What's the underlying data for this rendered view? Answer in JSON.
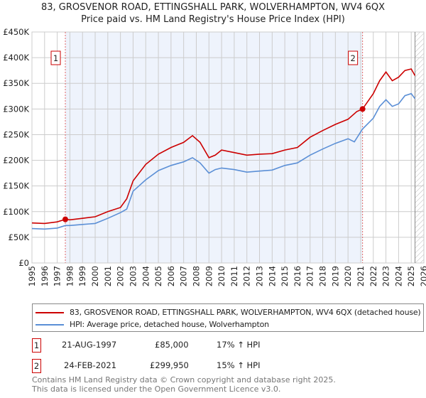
{
  "title_line1": "83, GROSVENOR ROAD, ETTINGSHALL PARK, WOLVERHAMPTON, WV4 6QX",
  "title_line2": "Price paid vs. HM Land Registry's House Price Index (HPI)",
  "chart_data": {
    "type": "line",
    "xlim": [
      1995,
      2026
    ],
    "ylim": [
      0,
      450000
    ],
    "yticks": [
      0,
      50000,
      100000,
      150000,
      200000,
      250000,
      300000,
      350000,
      400000,
      450000
    ],
    "ytick_labels": [
      "£0",
      "£50K",
      "£100K",
      "£150K",
      "£200K",
      "£250K",
      "£300K",
      "£350K",
      "£400K",
      "£450K"
    ],
    "xticks": [
      "1995",
      "1996",
      "1997",
      "1998",
      "1999",
      "2000",
      "2001",
      "2002",
      "2003",
      "2004",
      "2005",
      "2006",
      "2007",
      "2008",
      "2009",
      "2010",
      "2011",
      "2012",
      "2013",
      "2014",
      "2015",
      "2016",
      "2017",
      "2018",
      "2019",
      "2020",
      "2021",
      "2022",
      "2023",
      "2024",
      "2025",
      "2026"
    ],
    "grid": true,
    "shaded_range": [
      1997.64,
      2021.15
    ],
    "hatched_from": 2025.3,
    "series": [
      {
        "name": "83, GROSVENOR ROAD, ETTINGSHALL PARK, WOLVERHAMPTON, WV4 6QX (detached house)",
        "color": "#cc0000",
        "x": [
          1995,
          1996,
          1997,
          1997.64,
          1998,
          1999,
          2000,
          2001,
          2002,
          2002.5,
          2003,
          2004,
          2005,
          2006,
          2007,
          2007.7,
          2008.3,
          2009,
          2009.5,
          2010,
          2011,
          2012,
          2013,
          2014,
          2015,
          2016,
          2017,
          2018,
          2019,
          2020,
          2020.7,
          2021.15,
          2022,
          2022.5,
          2023,
          2023.5,
          2024,
          2024.5,
          2025,
          2025.3
        ],
        "y": [
          78000,
          77000,
          80000,
          85000,
          84000,
          87000,
          90000,
          100000,
          108000,
          125000,
          160000,
          192000,
          212000,
          225000,
          235000,
          248000,
          235000,
          205000,
          210000,
          220000,
          215000,
          210000,
          212000,
          213000,
          220000,
          225000,
          245000,
          258000,
          270000,
          280000,
          295000,
          299950,
          330000,
          355000,
          372000,
          355000,
          362000,
          375000,
          378000,
          365000
        ]
      },
      {
        "name": "HPI: Average price, detached house, Wolverhampton",
        "color": "#5b8fd6",
        "x": [
          1995,
          1996,
          1997,
          1997.64,
          1998,
          1999,
          2000,
          2001,
          2002,
          2002.5,
          2003,
          2004,
          2005,
          2006,
          2007,
          2007.7,
          2008.3,
          2009,
          2009.5,
          2010,
          2011,
          2012,
          2013,
          2014,
          2015,
          2016,
          2017,
          2018,
          2019,
          2020,
          2020.5,
          2021.15,
          2022,
          2022.5,
          2023,
          2023.5,
          2024,
          2024.5,
          2025,
          2025.3
        ],
        "y": [
          67000,
          66000,
          68000,
          73000,
          73000,
          75000,
          77000,
          87000,
          98000,
          105000,
          140000,
          162000,
          180000,
          190000,
          197000,
          205000,
          195000,
          175000,
          182000,
          185000,
          182000,
          177000,
          179000,
          181000,
          190000,
          195000,
          210000,
          222000,
          233000,
          242000,
          236000,
          261000,
          282000,
          305000,
          318000,
          305000,
          310000,
          326000,
          330000,
          320000
        ]
      }
    ],
    "annotations": [
      {
        "label": "1",
        "x": 1997.64,
        "y": 85000
      },
      {
        "label": "2",
        "x": 2021.15,
        "y": 299950
      }
    ]
  },
  "legend": {
    "items": [
      "83, GROSVENOR ROAD, ETTINGSHALL PARK, WOLVERHAMPTON, WV4 6QX (detached house)",
      "HPI: Average price, detached house, Wolverhampton"
    ]
  },
  "transactions": [
    {
      "num": "1",
      "date": "21-AUG-1997",
      "price": "£85,000",
      "hpi": "17% ↑ HPI"
    },
    {
      "num": "2",
      "date": "24-FEB-2021",
      "price": "£299,950",
      "hpi": "15% ↑ HPI"
    }
  ],
  "footer": {
    "line1": "Contains HM Land Registry data © Crown copyright and database right 2025.",
    "line2": "This data is licensed under the Open Government Licence v3.0."
  }
}
